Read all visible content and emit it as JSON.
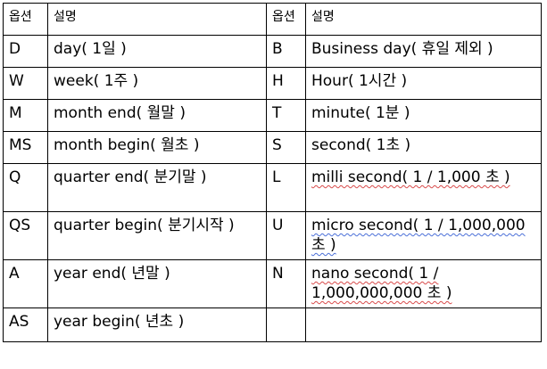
{
  "headers": [
    "옵션",
    "설명",
    "옵션",
    "설명"
  ],
  "rows": [
    {
      "opt1": "D",
      "desc1": "day( 1일 )",
      "opt2": "B",
      "desc2": "Business day( 휴일 제외 )"
    },
    {
      "opt1": "W",
      "desc1": "week( 1주 )",
      "opt2": "H",
      "desc2": "Hour( 1시간 )"
    },
    {
      "opt1": "M",
      "desc1": "month end( 월말 )",
      "opt2": "T",
      "desc2": "minute( 1분 )"
    },
    {
      "opt1": "MS",
      "desc1": "month begin( 월초 )",
      "opt2": "S",
      "desc2": "second( 1초 )"
    },
    {
      "opt1": "Q",
      "desc1": "quarter end( 분기말 )",
      "opt2": "L",
      "desc2": "milli second( 1 / 1,000 초 )"
    },
    {
      "opt1": "QS",
      "desc1": "quarter begin( 분기시작 )",
      "opt2": "U",
      "desc2": "micro second( 1 / 1,000,000 초 )"
    },
    {
      "opt1": "A",
      "desc1": "year end( 년말 )",
      "opt2": "N",
      "desc2": "nano second( 1 / 1,000,000,000 초 )"
    },
    {
      "opt1": "AS",
      "desc1": "year begin( 년초 )",
      "opt2": "",
      "desc2": ""
    }
  ]
}
